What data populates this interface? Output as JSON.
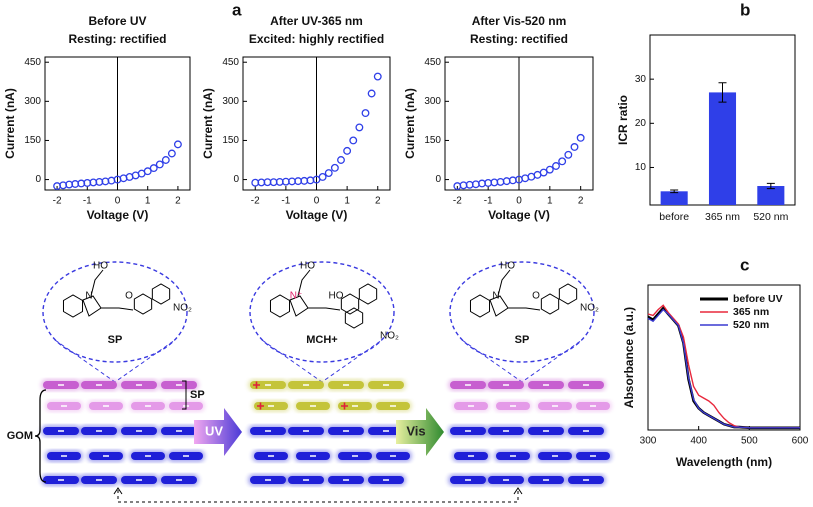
{
  "panel_labels": [
    "a",
    "b",
    "c"
  ],
  "chart_data": [
    {
      "type": "scatter",
      "title": "Before UV",
      "subtitle": "Resting: rectified",
      "x_label": "Voltage (V)",
      "y_label": "Current (nA)",
      "color": "#2f3fe8",
      "x": [
        -2,
        -1.8,
        -1.6,
        -1.4,
        -1.2,
        -1,
        -0.8,
        -0.6,
        -0.4,
        -0.2,
        0,
        0.2,
        0.4,
        0.6,
        0.8,
        1,
        1.2,
        1.4,
        1.6,
        1.8,
        2
      ],
      "values": [
        -25,
        -22,
        -19,
        -17,
        -15,
        -13,
        -11,
        -9,
        -7,
        -4,
        0,
        5,
        10,
        16,
        23,
        32,
        44,
        58,
        75,
        100,
        135
      ],
      "xlim": [
        -2.4,
        2.4
      ],
      "ylim": [
        -40,
        470
      ],
      "xticks": [
        -2,
        -1,
        0,
        1,
        2
      ],
      "yticks": [
        0,
        150,
        300,
        450
      ]
    },
    {
      "type": "scatter",
      "title": "After UV-365 nm",
      "subtitle": "Excited: highly rectified",
      "x_label": "Voltage (V)",
      "y_label": "Current (nA)",
      "color": "#2f3fe8",
      "x": [
        -2,
        -1.8,
        -1.6,
        -1.4,
        -1.2,
        -1,
        -0.8,
        -0.6,
        -0.4,
        -0.2,
        0,
        0.2,
        0.4,
        0.6,
        0.8,
        1,
        1.2,
        1.4,
        1.6,
        1.8,
        2
      ],
      "values": [
        -12,
        -11,
        -10,
        -10,
        -9,
        -8,
        -7,
        -6,
        -5,
        -3,
        0,
        10,
        25,
        45,
        75,
        110,
        150,
        200,
        255,
        330,
        395
      ],
      "xlim": [
        -2.4,
        2.4
      ],
      "ylim": [
        -40,
        470
      ],
      "xticks": [
        -2,
        -1,
        0,
        1,
        2
      ],
      "yticks": [
        0,
        150,
        300,
        450
      ]
    },
    {
      "type": "scatter",
      "title": "After Vis-520 nm",
      "subtitle": "Resting: rectified",
      "x_label": "Voltage (V)",
      "y_label": "Current (nA)",
      "color": "#2f3fe8",
      "x": [
        -2,
        -1.8,
        -1.6,
        -1.4,
        -1.2,
        -1,
        -0.8,
        -0.6,
        -0.4,
        -0.2,
        0,
        0.2,
        0.4,
        0.6,
        0.8,
        1,
        1.2,
        1.4,
        1.6,
        1.8,
        2
      ],
      "values": [
        -25,
        -22,
        -20,
        -18,
        -15,
        -13,
        -11,
        -9,
        -6,
        -3,
        0,
        5,
        11,
        18,
        27,
        38,
        52,
        70,
        95,
        125,
        160
      ],
      "xlim": [
        -2.4,
        2.4
      ],
      "ylim": [
        -40,
        470
      ],
      "xticks": [
        -2,
        -1,
        0,
        1,
        2
      ],
      "yticks": [
        0,
        150,
        300,
        450
      ]
    },
    {
      "type": "bar",
      "y_label": "ICR ratio",
      "categories": [
        "before",
        "365 nm",
        "520 nm"
      ],
      "values": [
        4.6,
        27,
        5.8
      ],
      "errors": [
        0.3,
        2.2,
        0.6
      ],
      "color": "#2f3fe8",
      "ylim": [
        1.5,
        40
      ],
      "yticks": [
        10,
        20,
        30
      ]
    },
    {
      "type": "line",
      "x_label": "Wavelength (nm)",
      "y_label": "Absorbance (a.u.)",
      "legend": "upper right",
      "x": [
        300,
        310,
        320,
        330,
        340,
        350,
        360,
        370,
        380,
        390,
        400,
        410,
        420,
        430,
        440,
        450,
        460,
        470,
        480,
        500,
        550,
        600
      ],
      "series": [
        {
          "name": "before UV",
          "color": "#000000",
          "values": [
            0.78,
            0.76,
            0.8,
            0.84,
            0.8,
            0.76,
            0.72,
            0.6,
            0.35,
            0.2,
            0.15,
            0.12,
            0.1,
            0.08,
            0.06,
            0.04,
            0.03,
            0.02,
            0.02,
            0.015,
            0.015,
            0.015
          ]
        },
        {
          "name": "365 nm",
          "color": "#e8283c",
          "values": [
            0.8,
            0.79,
            0.83,
            0.86,
            0.81,
            0.77,
            0.73,
            0.64,
            0.45,
            0.3,
            0.24,
            0.22,
            0.2,
            0.17,
            0.12,
            0.08,
            0.05,
            0.03,
            0.02,
            0.015,
            0.015,
            0.015
          ]
        },
        {
          "name": "520 nm",
          "color": "#3a3ad0",
          "values": [
            0.77,
            0.75,
            0.79,
            0.83,
            0.8,
            0.76,
            0.72,
            0.6,
            0.36,
            0.21,
            0.15,
            0.12,
            0.1,
            0.08,
            0.06,
            0.04,
            0.03,
            0.02,
            0.02,
            0.015,
            0.015,
            0.015
          ]
        }
      ],
      "xlim": [
        300,
        600
      ],
      "ylim": [
        0,
        1
      ],
      "xticks": [
        300,
        400,
        500,
        600
      ]
    }
  ],
  "diagram": {
    "molecules": [
      {
        "name": "SP",
        "atoms": [
          "HO",
          "N",
          "O",
          "NO₂"
        ]
      },
      {
        "name": "MCH+",
        "atoms": [
          "HO",
          "N⁺",
          "HO",
          "NO₂"
        ]
      },
      {
        "name": "SP",
        "atoms": [
          "HO",
          "N",
          "O",
          "NO₂"
        ]
      }
    ],
    "layer_labels": [
      "SP",
      "GOM"
    ],
    "arrows": [
      "UV",
      "Vis"
    ]
  }
}
